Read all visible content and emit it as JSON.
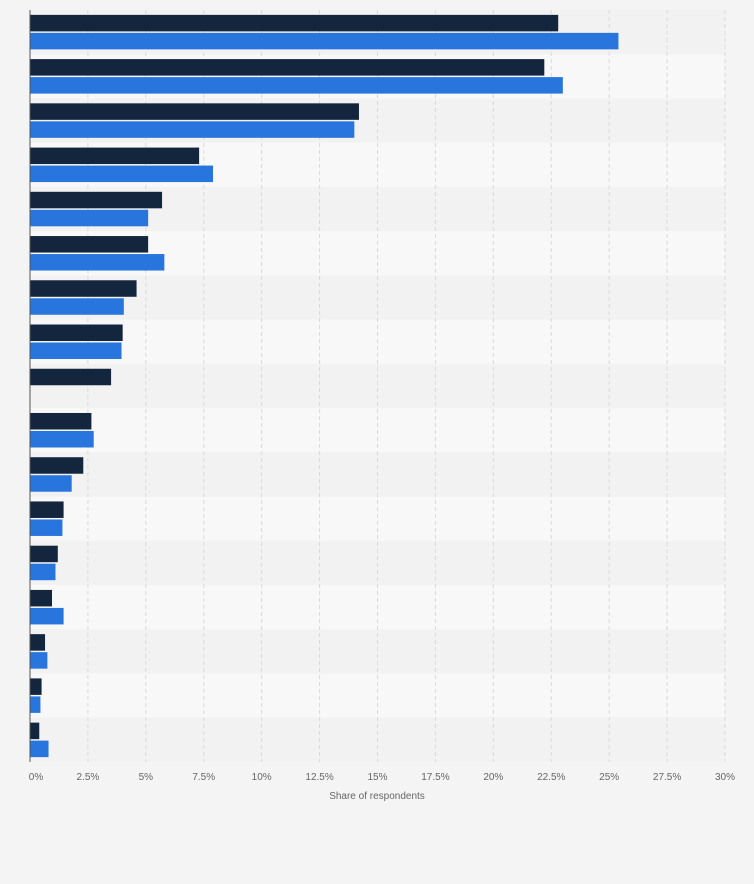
{
  "chart_data": {
    "type": "bar",
    "orientation": "horizontal",
    "xlabel": "Share of respondents",
    "xlim": [
      0,
      30
    ],
    "ticks": [
      {
        "value": 0,
        "label": "0%"
      },
      {
        "value": 2.5,
        "label": "2.5%"
      },
      {
        "value": 5,
        "label": "5%"
      },
      {
        "value": 7.5,
        "label": "7.5%"
      },
      {
        "value": 10,
        "label": "10%"
      },
      {
        "value": 12.5,
        "label": "12.5%"
      },
      {
        "value": 15,
        "label": "15%"
      },
      {
        "value": 17.5,
        "label": "17.5%"
      },
      {
        "value": 20,
        "label": "20%"
      },
      {
        "value": 22.5,
        "label": "22.5%"
      },
      {
        "value": 25,
        "label": "25%"
      },
      {
        "value": 27.5,
        "label": "27.5%"
      },
      {
        "value": 30,
        "label": "30%"
      }
    ],
    "grid": true,
    "legend": "none",
    "series": [
      {
        "color": "#14253e",
        "values": [
          22.8,
          22.2,
          14.2,
          7.3,
          5.7,
          5.1,
          4.6,
          4.0,
          3.5,
          2.65,
          2.3,
          1.45,
          1.2,
          0.95,
          0.65,
          0.5,
          0.4
        ]
      },
      {
        "color": "#2876dd",
        "values": [
          25.4,
          23.0,
          14.0,
          7.9,
          5.1,
          5.8,
          4.05,
          3.95,
          null,
          2.75,
          1.8,
          1.4,
          1.1,
          1.45,
          0.75,
          0.45,
          0.8
        ]
      }
    ]
  }
}
